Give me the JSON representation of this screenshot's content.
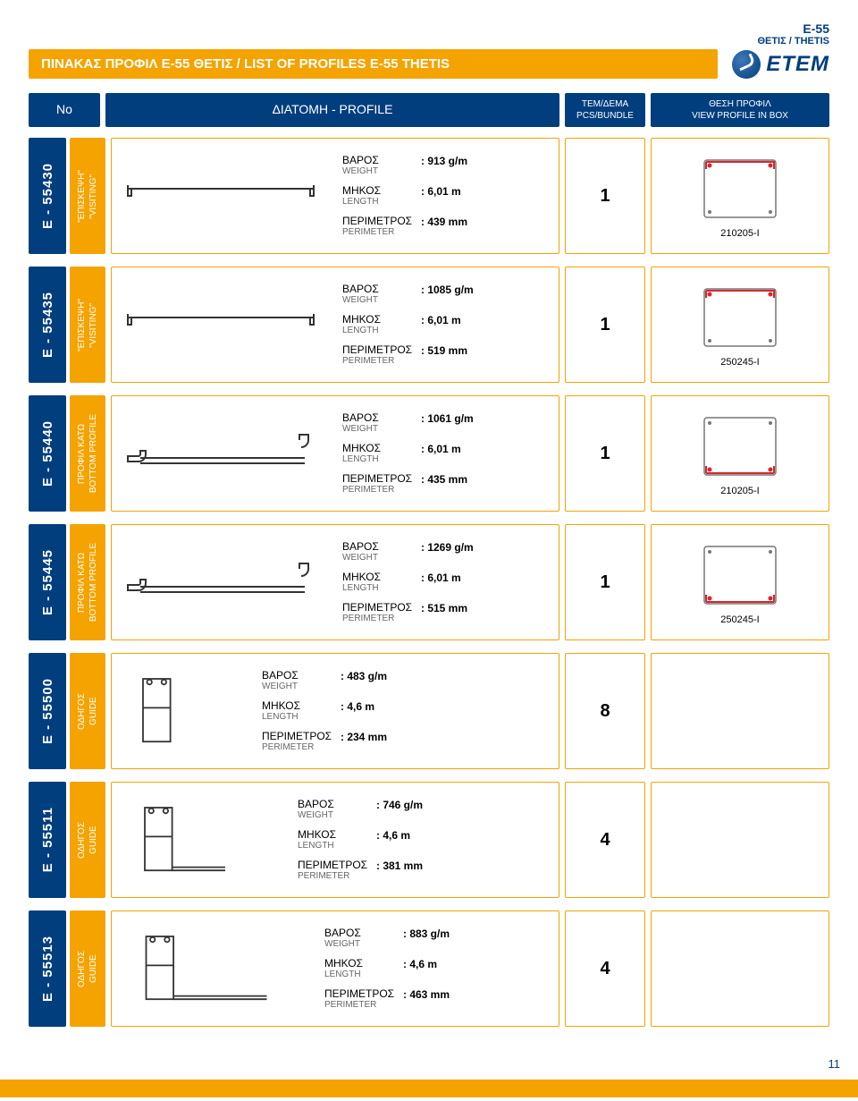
{
  "header": {
    "title": "ΠΙΝΑΚΑΣ ΠΡΟΦΙΛ Ε-55 ΘΕΤΙΣ / LIST OF PROFILES E-55 THETIS",
    "series_gr": "E-55",
    "series_sub": "ΘΕΤΙΣ / THETIS",
    "brand": "ETEM"
  },
  "columns": {
    "no": "No",
    "profile": "ΔΙΑΤΟΜΗ - PROFILE",
    "bundle_gr": "TEM/ΔΕΜΑ",
    "bundle_en": "PCS/BUNDLE",
    "view_gr": "ΘΕΣΗ ΠΡΟΦΙΛ",
    "view_en": "VIEW PROFILE IN BOX"
  },
  "spec_labels": {
    "weight_gr": "ΒΑΡΟΣ",
    "weight_en": "WEIGHT",
    "length_gr": "ΜΗΚΟΣ",
    "length_en": "LENGTH",
    "perimeter_gr": "ΠΕΡΙΜΕΤΡΟΣ",
    "perimeter_en": "PERIMETER"
  },
  "rows": [
    {
      "id": "E - 55430",
      "name_gr": "\"ΕΠΙΣΚΕΨΗ\"",
      "name_en": "\"VISITING\"",
      "name_bg": "yellow",
      "weight": ": 913 g/m",
      "length": ": 6,01 m",
      "perimeter": ": 439 mm",
      "bundle": "1",
      "box_code": "210205-I",
      "diagram": "long-thin",
      "box_highlight": "top"
    },
    {
      "id": "E - 55435",
      "name_gr": "\"ΕΠΙΣΚΕΨΗ\"",
      "name_en": "\"VISITING\"",
      "name_bg": "yellow",
      "weight": ": 1085 g/m",
      "length": ": 6,01 m",
      "perimeter": ": 519 mm",
      "bundle": "1",
      "box_code": "250245-I",
      "diagram": "long-thin",
      "box_highlight": "top"
    },
    {
      "id": "E - 55440",
      "name_gr": "ΠΡΟΦΙΛ ΚΑΤΩ",
      "name_en": "BOTTOM PROFILE",
      "name_bg": "yellow",
      "weight": ": 1061 g/m",
      "length": ": 6,01 m",
      "perimeter": ": 435 mm",
      "bundle": "1",
      "box_code": "210205-I",
      "diagram": "bottom-hook",
      "box_highlight": "bottom"
    },
    {
      "id": "E - 55445",
      "name_gr": "ΠΡΟΦΙΛ ΚΑΤΩ",
      "name_en": "BOTTOM PROFILE",
      "name_bg": "yellow",
      "weight": ": 1269 g/m",
      "length": ": 6,01 m",
      "perimeter": ": 515 mm",
      "bundle": "1",
      "box_code": "250245-I",
      "diagram": "bottom-hook",
      "box_highlight": "bottom"
    },
    {
      "id": "E - 55500",
      "name_gr": "ΟΔΗΓΟΣ",
      "name_en": "GUIDE",
      "name_bg": "yellow",
      "weight": ": 483 g/m",
      "length": ": 4,6 m",
      "perimeter": ": 234 mm",
      "bundle": "8",
      "box_code": "",
      "diagram": "guide-short",
      "box_highlight": "slots"
    },
    {
      "id": "E - 55511",
      "name_gr": "ΟΔΗΓΟΣ",
      "name_en": "GUIDE",
      "name_bg": "yellow",
      "weight": ": 746 g/m",
      "length": ": 4,6 m",
      "perimeter": ": 381 mm",
      "bundle": "4",
      "box_code": "",
      "diagram": "guide-L",
      "box_highlight": "slots"
    },
    {
      "id": "E - 55513",
      "name_gr": "ΟΔΗΓΟΣ",
      "name_en": "GUIDE",
      "name_bg": "yellow",
      "weight": ": 883 g/m",
      "length": ": 4,6 m",
      "perimeter": ": 463 mm",
      "bundle": "4",
      "box_code": "",
      "diagram": "guide-L-long",
      "box_highlight": "slots"
    }
  ],
  "page_number": "11",
  "colors": {
    "blue": "#003e7e",
    "orange": "#f4a300",
    "red": "#d9262e",
    "gray": "#777777"
  }
}
